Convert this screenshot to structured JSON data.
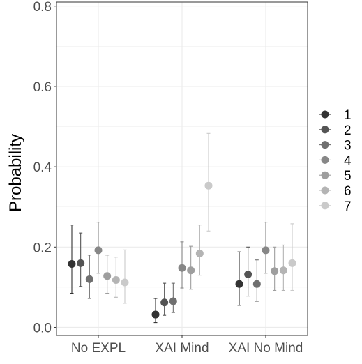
{
  "chart_data": {
    "type": "scatter",
    "subtype": "point-with-errorbars (dodged)",
    "title": "",
    "xlabel": "",
    "ylabel": "Probability",
    "categories": [
      "No EXPL",
      "XAI Mind",
      "XAI No Mind"
    ],
    "y_ticks": [
      "0.0",
      "0.2",
      "0.4",
      "0.6",
      "0.8"
    ],
    "ylim": [
      -0.02,
      0.81
    ],
    "grid": true,
    "legend_position": "right",
    "series": [
      {
        "name": "1",
        "color": "#333333",
        "values": [
          0.158,
          0.032,
          0.108
        ],
        "lower": [
          0.085,
          0.012,
          0.055
        ],
        "upper": [
          0.255,
          0.072,
          0.188
        ]
      },
      {
        "name": "2",
        "color": "#545454",
        "values": [
          0.16,
          0.062,
          0.132
        ],
        "lower": [
          0.102,
          0.03,
          0.078
        ],
        "upper": [
          0.235,
          0.11,
          0.2
        ]
      },
      {
        "name": "3",
        "color": "#6f6f6f",
        "values": [
          0.12,
          0.065,
          0.108
        ],
        "lower": [
          0.072,
          0.037,
          0.065
        ],
        "upper": [
          0.18,
          0.11,
          0.168
        ]
      },
      {
        "name": "4",
        "color": "#878787",
        "values": [
          0.192,
          0.148,
          0.192
        ],
        "lower": [
          0.135,
          0.098,
          0.135
        ],
        "upper": [
          0.262,
          0.213,
          0.262
        ]
      },
      {
        "name": "5",
        "color": "#9e9e9e",
        "values": [
          0.128,
          0.142,
          0.14
        ],
        "lower": [
          0.085,
          0.095,
          0.092
        ],
        "upper": [
          0.18,
          0.202,
          0.2
        ]
      },
      {
        "name": "6",
        "color": "#b4b4b4",
        "values": [
          0.118,
          0.184,
          0.142
        ],
        "lower": [
          0.075,
          0.13,
          0.092
        ],
        "upper": [
          0.175,
          0.255,
          0.205
        ]
      },
      {
        "name": "7",
        "color": "#cacaca",
        "values": [
          0.112,
          0.353,
          0.16
        ],
        "lower": [
          0.06,
          0.24,
          0.092
        ],
        "upper": [
          0.193,
          0.483,
          0.258
        ]
      }
    ]
  }
}
